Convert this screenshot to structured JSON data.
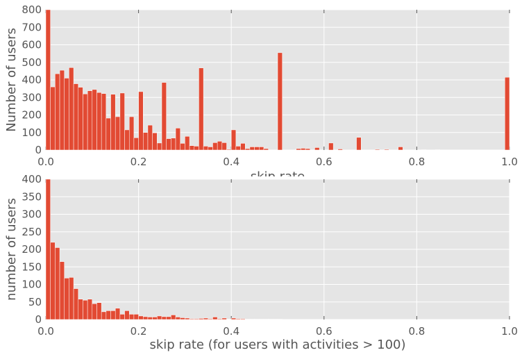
{
  "colors": {
    "bar": "#e24a33",
    "panel_bg": "#e5e5e5",
    "grid": "#ffffff",
    "text": "#555555"
  },
  "chart_data": [
    {
      "type": "bar",
      "xlabel": "skip rate",
      "ylabel": "Number of users",
      "xlim": [
        0,
        1
      ],
      "ylim": [
        0,
        800
      ],
      "grid": true,
      "legend": "none",
      "xticks": [
        "0.0",
        "0.2",
        "0.4",
        "0.6",
        "0.8",
        "1.0"
      ],
      "yticks": [
        "0",
        "100",
        "200",
        "300",
        "400",
        "500",
        "600",
        "700",
        "800"
      ],
      "bin_width": 0.01,
      "x": [
        0.0,
        0.01,
        0.02,
        0.03,
        0.04,
        0.05,
        0.06,
        0.07,
        0.08,
        0.09,
        0.1,
        0.11,
        0.12,
        0.13,
        0.14,
        0.15,
        0.16,
        0.17,
        0.18,
        0.19,
        0.2,
        0.21,
        0.22,
        0.23,
        0.24,
        0.25,
        0.26,
        0.27,
        0.28,
        0.29,
        0.3,
        0.31,
        0.32,
        0.33,
        0.34,
        0.35,
        0.36,
        0.37,
        0.38,
        0.39,
        0.4,
        0.41,
        0.42,
        0.43,
        0.44,
        0.45,
        0.46,
        0.47,
        0.48,
        0.49,
        0.5,
        0.51,
        0.52,
        0.53,
        0.54,
        0.55,
        0.56,
        0.57,
        0.58,
        0.59,
        0.6,
        0.61,
        0.62,
        0.63,
        0.64,
        0.65,
        0.66,
        0.67,
        0.68,
        0.69,
        0.7,
        0.71,
        0.72,
        0.73,
        0.74,
        0.75,
        0.76,
        0.77,
        0.78,
        0.79,
        0.8,
        0.81,
        0.82,
        0.83,
        0.84,
        0.85,
        0.86,
        0.87,
        0.88,
        0.89,
        0.9,
        0.91,
        0.92,
        0.93,
        0.94,
        0.95,
        0.96,
        0.97,
        0.98,
        0.99
      ],
      "values": [
        800,
        360,
        435,
        455,
        410,
        470,
        378,
        358,
        320,
        338,
        345,
        328,
        322,
        182,
        318,
        190,
        325,
        115,
        190,
        70,
        333,
        100,
        142,
        98,
        40,
        385,
        65,
        68,
        125,
        38,
        78,
        25,
        22,
        468,
        22,
        18,
        42,
        50,
        42,
        4,
        115,
        22,
        38,
        8,
        18,
        18,
        18,
        8,
        0,
        0,
        555,
        0,
        0,
        0,
        8,
        10,
        8,
        0,
        14,
        0,
        0,
        40,
        0,
        6,
        0,
        0,
        0,
        72,
        0,
        0,
        0,
        4,
        0,
        4,
        0,
        0,
        18,
        0,
        0,
        0,
        0,
        2,
        0,
        0,
        2,
        0,
        0,
        0,
        0,
        0,
        0,
        0,
        0,
        0,
        0,
        0,
        0,
        0,
        0,
        415
      ]
    },
    {
      "type": "bar",
      "xlabel": "skip rate (for users with activities > 100)",
      "ylabel": "number of users",
      "xlim": [
        0,
        1
      ],
      "ylim": [
        0,
        400
      ],
      "grid": true,
      "legend": "none",
      "xticks": [
        "0.0",
        "0.2",
        "0.4",
        "0.6",
        "0.8",
        "1.0"
      ],
      "yticks": [
        "0",
        "50",
        "100",
        "150",
        "200",
        "250",
        "300",
        "350",
        "400"
      ],
      "bin_width": 0.01,
      "x": [
        0.0,
        0.01,
        0.02,
        0.03,
        0.04,
        0.05,
        0.06,
        0.07,
        0.08,
        0.09,
        0.1,
        0.11,
        0.12,
        0.13,
        0.14,
        0.15,
        0.16,
        0.17,
        0.18,
        0.19,
        0.2,
        0.21,
        0.22,
        0.23,
        0.24,
        0.25,
        0.26,
        0.27,
        0.28,
        0.29,
        0.3,
        0.31,
        0.32,
        0.33,
        0.34,
        0.35,
        0.36,
        0.37,
        0.38,
        0.39,
        0.4,
        0.41,
        0.42,
        0.43,
        0.44,
        0.45,
        0.46,
        0.47,
        0.48,
        0.49,
        0.5
      ],
      "values": [
        400,
        220,
        205,
        165,
        118,
        120,
        88,
        58,
        55,
        58,
        45,
        48,
        22,
        25,
        25,
        32,
        15,
        25,
        15,
        15,
        10,
        8,
        7,
        7,
        10,
        8,
        8,
        13,
        7,
        5,
        4,
        2,
        2,
        3,
        4,
        2,
        7,
        2,
        4,
        1,
        4,
        2,
        2,
        1,
        1,
        1,
        1,
        1,
        1,
        1,
        1
      ]
    }
  ]
}
